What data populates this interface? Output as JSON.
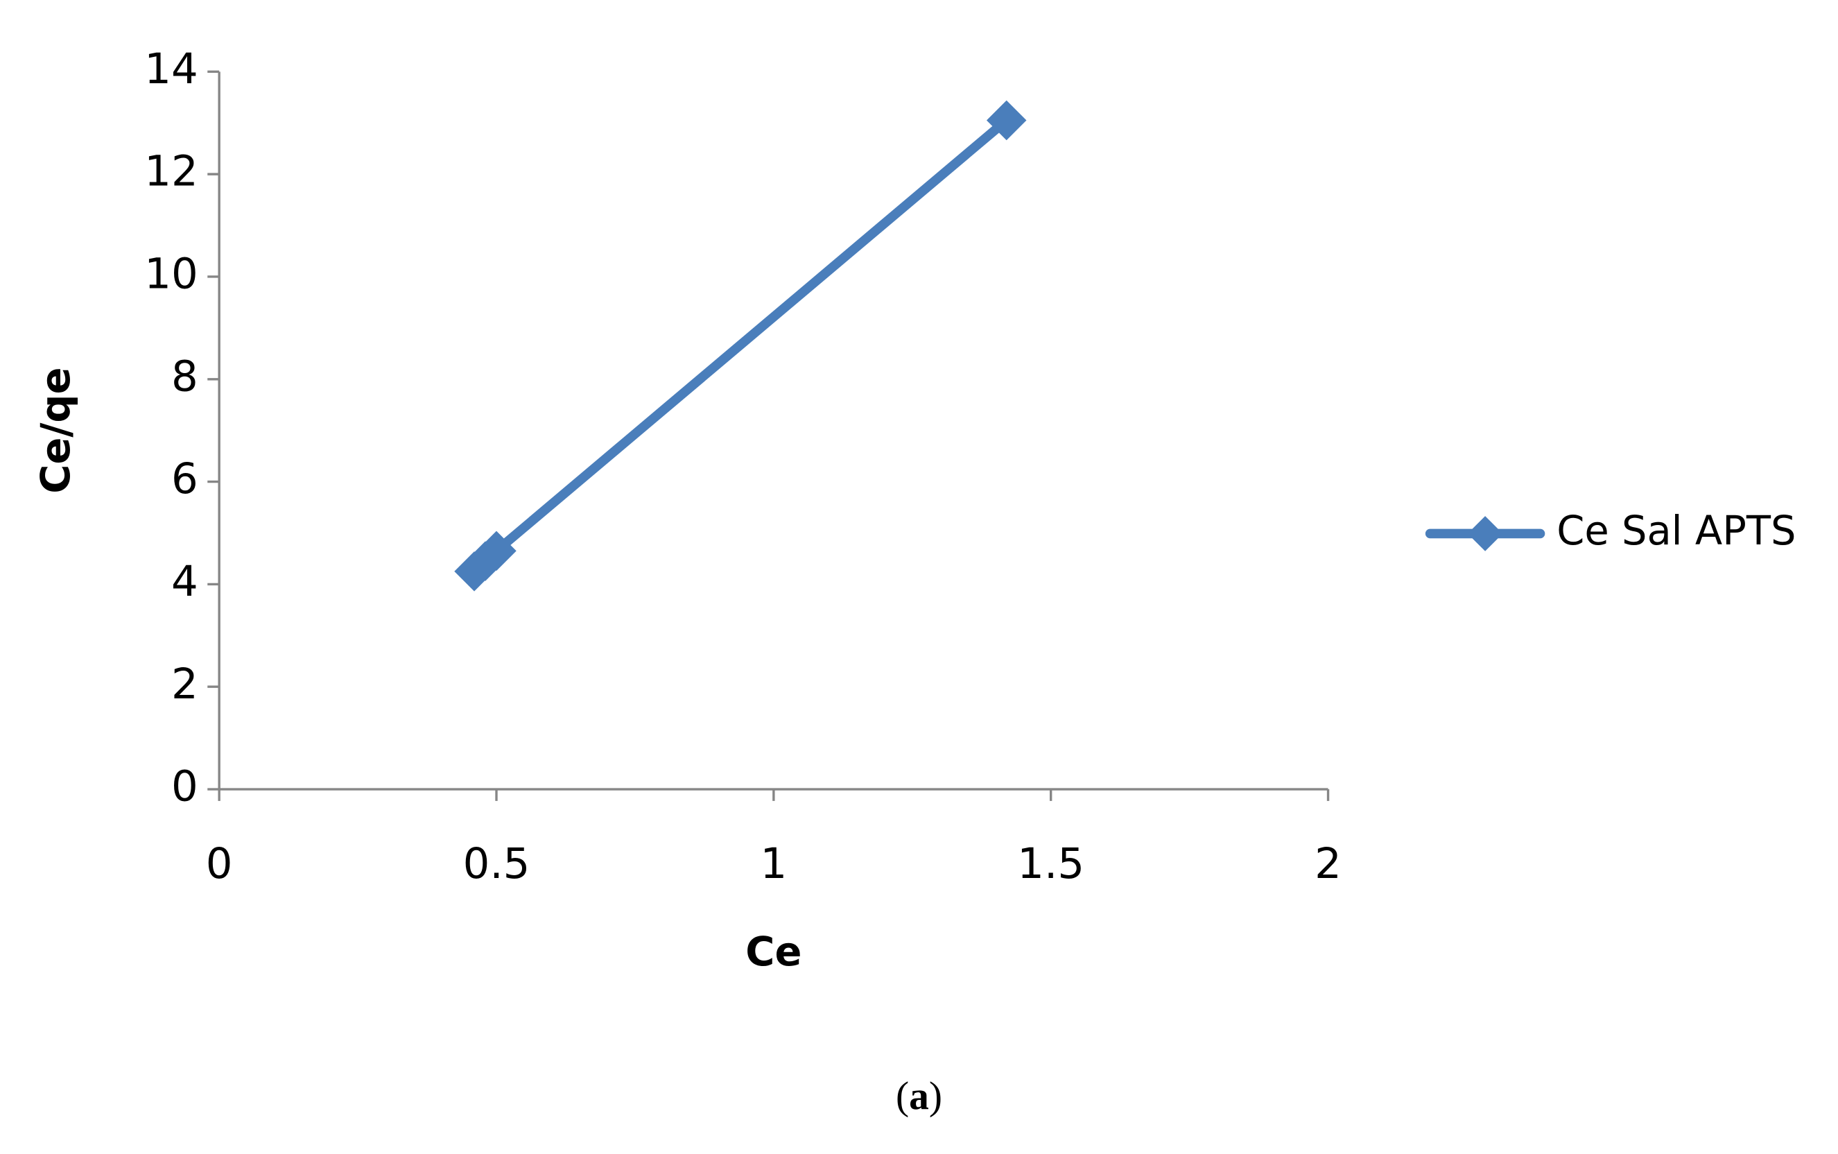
{
  "chart_data": {
    "type": "line",
    "x_label": "Ce",
    "y_label": "Ce/qe",
    "x": [
      0.46,
      0.48,
      0.5,
      1.42
    ],
    "series": [
      {
        "name": "Ce Sal APTS",
        "color": "#4a7ebb",
        "values": [
          4.25,
          4.45,
          4.65,
          13.05
        ]
      }
    ],
    "xlim": [
      0,
      2
    ],
    "xticks": [
      0,
      0.5,
      1,
      1.5,
      2
    ],
    "ylim": [
      0,
      14
    ],
    "yticks": [
      0,
      2,
      4,
      6,
      8,
      10,
      12,
      14
    ],
    "grid": false,
    "legend": "right",
    "marker": "diamond"
  },
  "caption": {
    "prefix": "(",
    "label": "a",
    "suffix": ")"
  }
}
